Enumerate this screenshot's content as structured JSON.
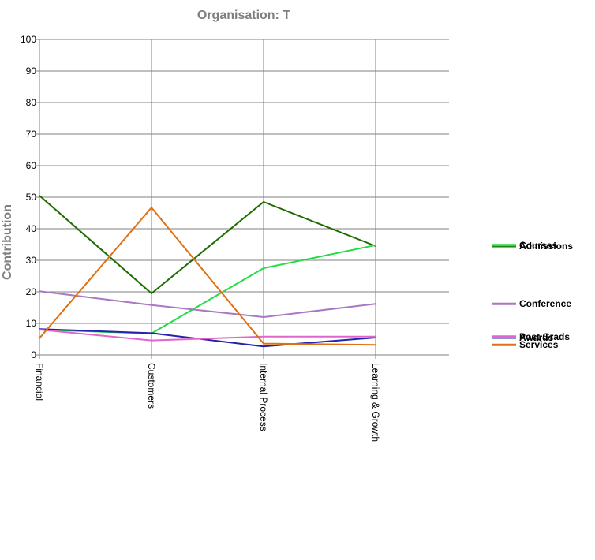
{
  "chart_data": {
    "type": "line",
    "title": "Organisation: T",
    "ylabel": "Contribution",
    "xlabel": "",
    "categories": [
      "Financial",
      "Customers",
      "Internal Process",
      "Learning & Growth"
    ],
    "ylim": [
      0,
      100
    ],
    "yticks": [
      0,
      10,
      20,
      30,
      40,
      50,
      60,
      70,
      80,
      90,
      100
    ],
    "grid": true,
    "legend_position": "right",
    "series": [
      {
        "name": "Admissions",
        "color": "#1e6b00",
        "values": [
          50.5,
          19.5,
          48.5,
          34.5
        ]
      },
      {
        "name": "Courses",
        "color": "#22dd44",
        "values": [
          8.0,
          6.8,
          27.5,
          34.8
        ]
      },
      {
        "name": "Conference",
        "color": "#aa77c4",
        "values": [
          20.2,
          15.8,
          12.0,
          16.2
        ]
      },
      {
        "name": "Awards",
        "color": "#2222aa",
        "values": [
          8.2,
          6.9,
          2.7,
          5.5
        ]
      },
      {
        "name": "Post Grads",
        "color": "#e066cc",
        "values": [
          8.0,
          4.6,
          5.8,
          5.8
        ]
      },
      {
        "name": "Services",
        "color": "#e07010",
        "values": [
          5.3,
          46.7,
          3.6,
          3.2
        ]
      }
    ]
  }
}
